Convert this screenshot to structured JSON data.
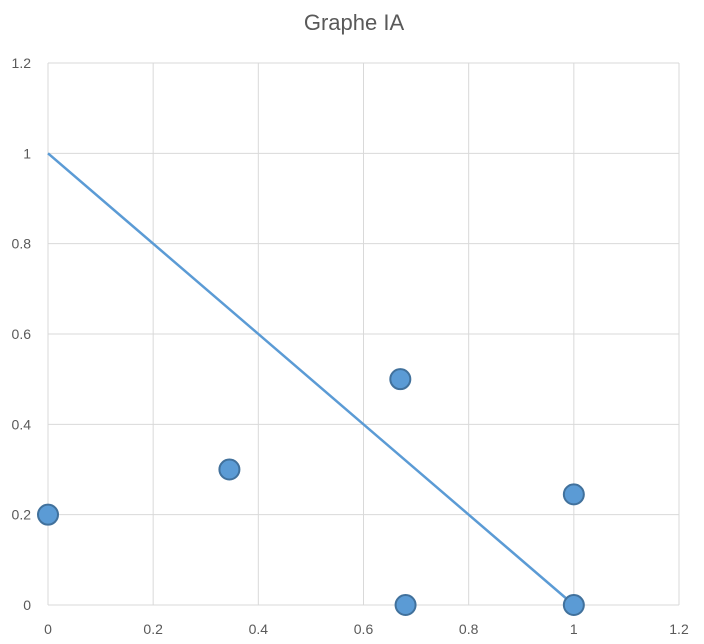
{
  "chart_data": {
    "type": "scatter",
    "title": "Graphe IA",
    "xlabel": "",
    "ylabel": "",
    "xlim": [
      0,
      1.2
    ],
    "ylim": [
      0,
      1.2
    ],
    "x_ticks": [
      "0",
      "0.2",
      "0.4",
      "0.6",
      "0.8",
      "1",
      "1.2"
    ],
    "y_ticks": [
      "0",
      "0.2",
      "0.4",
      "0.6",
      "0.8",
      "1",
      "1.2"
    ],
    "grid": true,
    "legend": "none",
    "series": [
      {
        "type": "scatter",
        "color": "#5b9bd5",
        "points": [
          {
            "x": 0.0,
            "y": 0.2
          },
          {
            "x": 0.345,
            "y": 0.3
          },
          {
            "x": 0.67,
            "y": 0.5
          },
          {
            "x": 0.68,
            "y": 0.0
          },
          {
            "x": 1.0,
            "y": 0.245
          },
          {
            "x": 1.0,
            "y": 0.0
          }
        ]
      },
      {
        "type": "line",
        "color": "#5b9bd5",
        "points": [
          {
            "x": 0.0,
            "y": 1.0
          },
          {
            "x": 1.0,
            "y": 0.0
          }
        ]
      }
    ]
  }
}
